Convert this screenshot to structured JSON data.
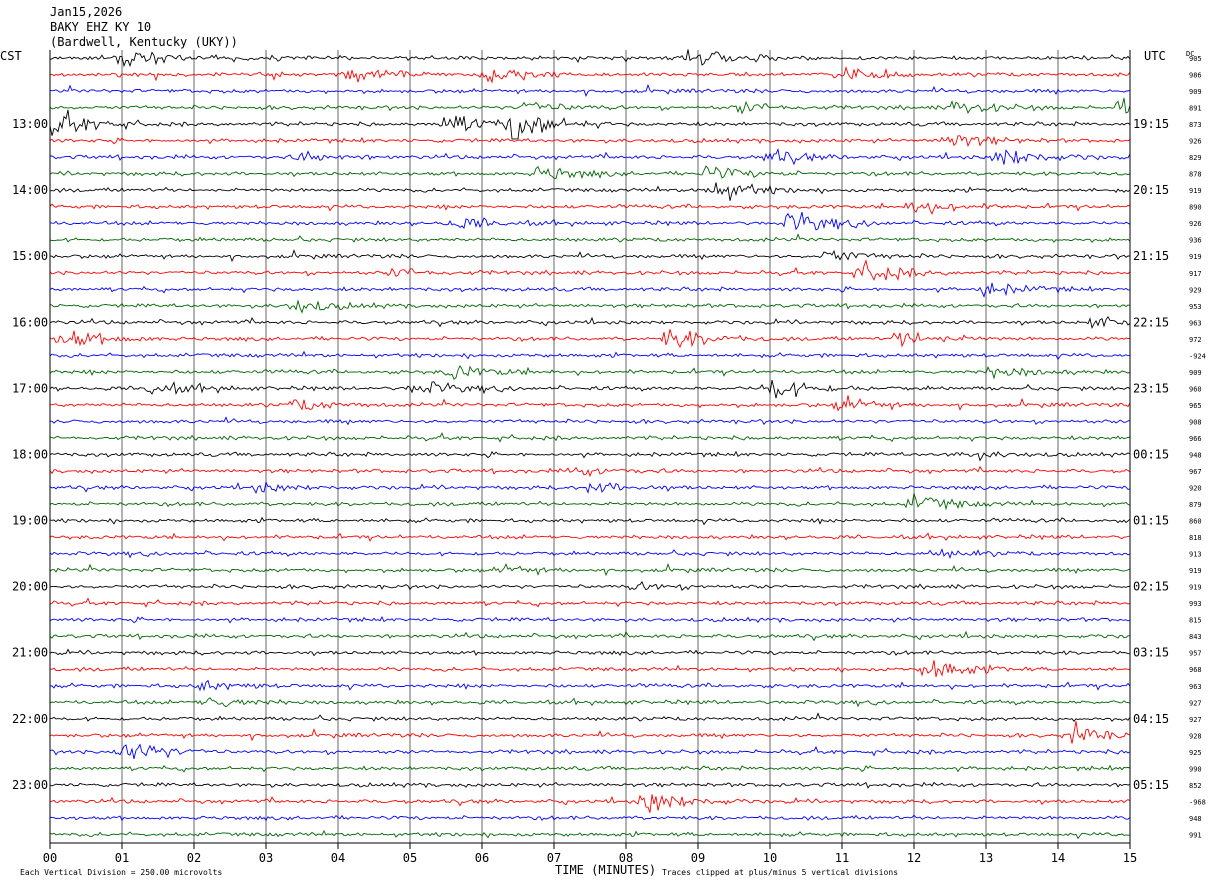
{
  "header": {
    "date": "Jan15,2026",
    "station": "BAKY EHZ KY 10",
    "location": "(Bardwell, Kentucky (UKY))"
  },
  "left_axis_label": "CST",
  "right_axis_label": "UTC",
  "dc_label": "DC",
  "footer": {
    "scale_note": "Each Vertical Division =  250.00 microvolts",
    "clip_note": "Traces clipped at plus/minus 5 vertical divisions"
  },
  "chart_data": {
    "type": "line",
    "title": "",
    "xlabel": "TIME (MINUTES)",
    "ylabel": "",
    "xlim": [
      0,
      15
    ],
    "x_ticks": [
      "00",
      "01",
      "02",
      "03",
      "04",
      "05",
      "06",
      "07",
      "08",
      "09",
      "10",
      "11",
      "12",
      "13",
      "14",
      "15"
    ],
    "grid": true,
    "trace_count": 48,
    "trace_colors": [
      "#000000",
      "#ff0000",
      "#0000ff",
      "#006400"
    ],
    "left_hour_labels": [
      "13:00",
      "14:00",
      "15:00",
      "16:00",
      "17:00",
      "18:00",
      "19:00",
      "20:00",
      "21:00",
      "22:00",
      "23:00"
    ],
    "right_hour_labels": [
      "19:15",
      "20:15",
      "21:15",
      "22:15",
      "23:15",
      "00:15",
      "01:15",
      "02:15",
      "03:15",
      "04:15",
      "05:15"
    ],
    "dc_offsets": [
      "905",
      "986",
      "909",
      "891",
      "873",
      "926",
      "829",
      "878",
      "919",
      "890",
      "926",
      "936",
      "919",
      "917",
      "929",
      "953",
      "963",
      "972",
      "-924",
      "909",
      "960",
      "965",
      "908",
      "966",
      "948",
      "967",
      "920",
      "879",
      "860",
      "818",
      "913",
      "919",
      "919",
      "993",
      "815",
      "843",
      "957",
      "968",
      "963",
      "927",
      "927",
      "928",
      "925",
      "990",
      "852",
      "-968",
      "948",
      "991"
    ],
    "events": [
      {
        "trace": 0,
        "minute": 1.0,
        "amp": 2.0
      },
      {
        "trace": 0,
        "minute": 8.9,
        "amp": 3.2
      },
      {
        "trace": 1,
        "minute": 4.2,
        "amp": 2.0
      },
      {
        "trace": 1,
        "minute": 6.1,
        "amp": 2.2
      },
      {
        "trace": 1,
        "minute": 11.0,
        "amp": 1.8
      },
      {
        "trace": 3,
        "minute": 6.6,
        "amp": 1.6
      },
      {
        "trace": 3,
        "minute": 9.6,
        "amp": 1.4
      },
      {
        "trace": 3,
        "minute": 12.6,
        "amp": 1.8
      },
      {
        "trace": 3,
        "minute": 14.9,
        "amp": 2.6
      },
      {
        "trace": 4,
        "minute": 0.1,
        "amp": 2.8
      },
      {
        "trace": 4,
        "minute": 5.5,
        "amp": 3.0
      },
      {
        "trace": 4,
        "minute": 6.4,
        "amp": 5.0
      },
      {
        "trace": 5,
        "minute": 12.5,
        "amp": 2.0
      },
      {
        "trace": 6,
        "minute": 3.5,
        "amp": 1.2
      },
      {
        "trace": 6,
        "minute": 10.0,
        "amp": 1.6
      },
      {
        "trace": 6,
        "minute": 13.2,
        "amp": 2.6
      },
      {
        "trace": 7,
        "minute": 6.8,
        "amp": 1.8
      },
      {
        "trace": 7,
        "minute": 9.1,
        "amp": 1.8
      },
      {
        "trace": 8,
        "minute": 9.2,
        "amp": 2.8
      },
      {
        "trace": 9,
        "minute": 12.0,
        "amp": 2.0
      },
      {
        "trace": 10,
        "minute": 5.6,
        "amp": 1.6
      },
      {
        "trace": 10,
        "minute": 10.3,
        "amp": 2.6
      },
      {
        "trace": 12,
        "minute": 10.8,
        "amp": 1.6
      },
      {
        "trace": 13,
        "minute": 11.3,
        "amp": 2.8
      },
      {
        "trace": 13,
        "minute": 4.8,
        "amp": 1.2
      },
      {
        "trace": 14,
        "minute": 13.0,
        "amp": 1.6
      },
      {
        "trace": 15,
        "minute": 3.4,
        "amp": 1.6
      },
      {
        "trace": 16,
        "minute": 14.5,
        "amp": 1.4
      },
      {
        "trace": 17,
        "minute": 0.2,
        "amp": 2.4
      },
      {
        "trace": 17,
        "minute": 8.6,
        "amp": 2.8
      },
      {
        "trace": 17,
        "minute": 11.8,
        "amp": 2.4
      },
      {
        "trace": 19,
        "minute": 5.6,
        "amp": 1.8
      },
      {
        "trace": 19,
        "minute": 13.1,
        "amp": 1.4
      },
      {
        "trace": 20,
        "minute": 1.4,
        "amp": 1.6
      },
      {
        "trace": 20,
        "minute": 5.1,
        "amp": 1.8
      },
      {
        "trace": 20,
        "minute": 10.0,
        "amp": 3.0
      },
      {
        "trace": 21,
        "minute": 3.4,
        "amp": 1.4
      },
      {
        "trace": 21,
        "minute": 11.0,
        "amp": 1.6
      },
      {
        "trace": 24,
        "minute": 12.7,
        "amp": 1.0
      },
      {
        "trace": 25,
        "minute": 7.3,
        "amp": 1.0
      },
      {
        "trace": 26,
        "minute": 7.5,
        "amp": 1.4
      },
      {
        "trace": 26,
        "minute": 2.9,
        "amp": 1.0
      },
      {
        "trace": 27,
        "minute": 12.0,
        "amp": 2.0
      },
      {
        "trace": 30,
        "minute": 12.3,
        "amp": 1.0
      },
      {
        "trace": 31,
        "minute": 6.3,
        "amp": 1.0
      },
      {
        "trace": 32,
        "minute": 8.1,
        "amp": 1.0
      },
      {
        "trace": 37,
        "minute": 12.2,
        "amp": 3.0
      },
      {
        "trace": 38,
        "minute": 2.1,
        "amp": 1.2
      },
      {
        "trace": 39,
        "minute": 2.2,
        "amp": 1.4
      },
      {
        "trace": 41,
        "minute": 14.2,
        "amp": 2.4
      },
      {
        "trace": 42,
        "minute": 1.0,
        "amp": 3.6
      },
      {
        "trace": 45,
        "minute": 8.3,
        "amp": 3.0
      }
    ]
  }
}
